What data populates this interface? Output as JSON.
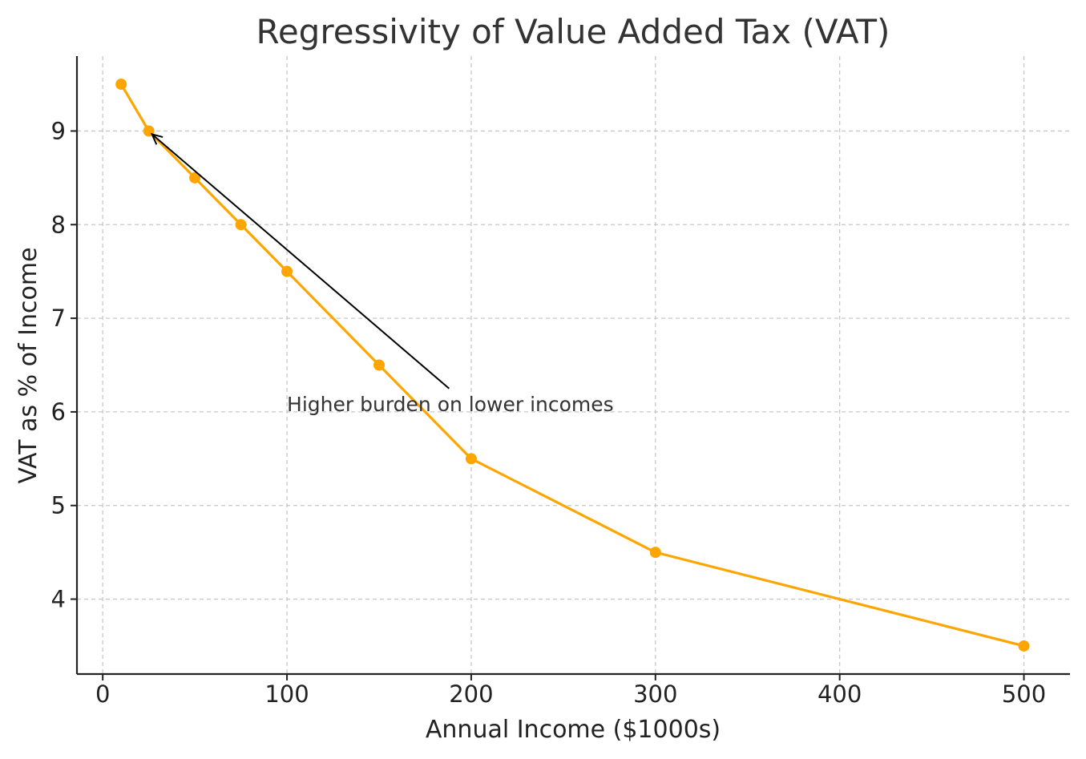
{
  "chart_data": {
    "type": "line",
    "title": "Regressivity of Value Added Tax (VAT)",
    "xlabel": "Annual Income ($1000s)",
    "ylabel": "VAT as % of Income",
    "xlim": [
      -14,
      525
    ],
    "ylim": [
      3.2,
      9.8
    ],
    "xticks": [
      0,
      100,
      200,
      300,
      400,
      500
    ],
    "yticks": [
      4,
      5,
      6,
      7,
      8,
      9
    ],
    "grid": true,
    "series": [
      {
        "color": "#FFA500",
        "marker": "circle",
        "x": [
          10,
          25,
          50,
          75,
          100,
          150,
          200,
          300,
          500
        ],
        "y": [
          9.5,
          9.0,
          8.5,
          8.0,
          7.5,
          6.5,
          5.5,
          4.5,
          3.5
        ]
      }
    ],
    "annotation": {
      "text": "Higher burden on lower incomes",
      "xy": [
        25,
        9.0
      ],
      "xytext": [
        100,
        6.0
      ]
    }
  }
}
